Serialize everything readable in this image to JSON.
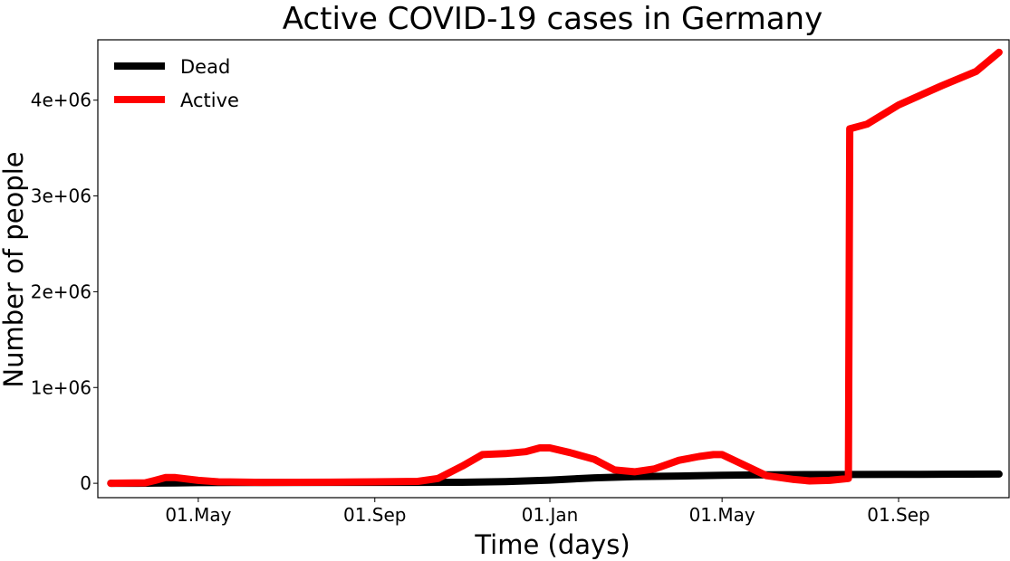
{
  "chart_data": {
    "type": "line",
    "title": "Active COVID-19 cases in Germany",
    "xlabel": "Time (days)",
    "ylabel": "Number of people",
    "x_ticks": [
      "01.May",
      "01.Sep",
      "01.Jan",
      "01.May",
      "01.Sep"
    ],
    "y_ticks": [
      "0",
      "1e+06",
      "2e+06",
      "3e+06",
      "4e+06"
    ],
    "y_tick_values": [
      0,
      1000000,
      2000000,
      3000000,
      4000000
    ],
    "x_tick_dates": [
      "2020-05-01",
      "2020-09-01",
      "2021-01-01",
      "2021-05-01",
      "2021-09-01"
    ],
    "xlim": [
      "2020-02-21",
      "2021-11-17"
    ],
    "ylim": [
      -150000,
      4630000
    ],
    "grid": false,
    "legend_position": "top-left",
    "series": [
      {
        "name": "Dead",
        "color": "#000000",
        "points": [
          [
            "2020-03-01",
            0
          ],
          [
            "2020-03-20",
            0
          ],
          [
            "2020-04-01",
            2000
          ],
          [
            "2020-04-15",
            4000
          ],
          [
            "2020-05-01",
            6500
          ],
          [
            "2020-06-01",
            8700
          ],
          [
            "2020-08-01",
            9200
          ],
          [
            "2020-10-01",
            9600
          ],
          [
            "2020-11-01",
            11000
          ],
          [
            "2020-12-01",
            17000
          ],
          [
            "2021-01-01",
            33000
          ],
          [
            "2021-02-01",
            57000
          ],
          [
            "2021-03-01",
            70000
          ],
          [
            "2021-04-01",
            76000
          ],
          [
            "2021-05-01",
            84000
          ],
          [
            "2021-06-01",
            89000
          ],
          [
            "2021-07-01",
            91000
          ],
          [
            "2021-08-01",
            92000
          ],
          [
            "2021-09-01",
            93000
          ],
          [
            "2021-10-01",
            94500
          ],
          [
            "2021-11-10",
            97000
          ]
        ]
      },
      {
        "name": "Active",
        "color": "#ff0000",
        "points": [
          [
            "2020-03-01",
            0
          ],
          [
            "2020-03-25",
            5000
          ],
          [
            "2020-04-01",
            30000
          ],
          [
            "2020-04-08",
            60000
          ],
          [
            "2020-04-15",
            60000
          ],
          [
            "2020-05-01",
            30000
          ],
          [
            "2020-05-15",
            15000
          ],
          [
            "2020-06-15",
            10000
          ],
          [
            "2020-08-01",
            12000
          ],
          [
            "2020-09-01",
            15000
          ],
          [
            "2020-10-01",
            20000
          ],
          [
            "2020-10-15",
            50000
          ],
          [
            "2020-11-01",
            180000
          ],
          [
            "2020-11-15",
            300000
          ],
          [
            "2020-12-01",
            310000
          ],
          [
            "2020-12-15",
            330000
          ],
          [
            "2020-12-25",
            370000
          ],
          [
            "2021-01-01",
            370000
          ],
          [
            "2021-01-15",
            320000
          ],
          [
            "2021-02-01",
            250000
          ],
          [
            "2021-02-15",
            140000
          ],
          [
            "2021-03-01",
            120000
          ],
          [
            "2021-03-15",
            150000
          ],
          [
            "2021-04-01",
            240000
          ],
          [
            "2021-04-15",
            280000
          ],
          [
            "2021-04-25",
            300000
          ],
          [
            "2021-05-01",
            300000
          ],
          [
            "2021-05-15",
            200000
          ],
          [
            "2021-06-01",
            80000
          ],
          [
            "2021-06-20",
            40000
          ],
          [
            "2021-07-01",
            25000
          ],
          [
            "2021-07-15",
            30000
          ],
          [
            "2021-07-28",
            50000
          ],
          [
            "2021-07-29",
            3700000
          ],
          [
            "2021-08-10",
            3750000
          ],
          [
            "2021-09-01",
            3950000
          ],
          [
            "2021-10-01",
            4150000
          ],
          [
            "2021-10-25",
            4300000
          ],
          [
            "2021-11-10",
            4500000
          ]
        ]
      }
    ]
  }
}
